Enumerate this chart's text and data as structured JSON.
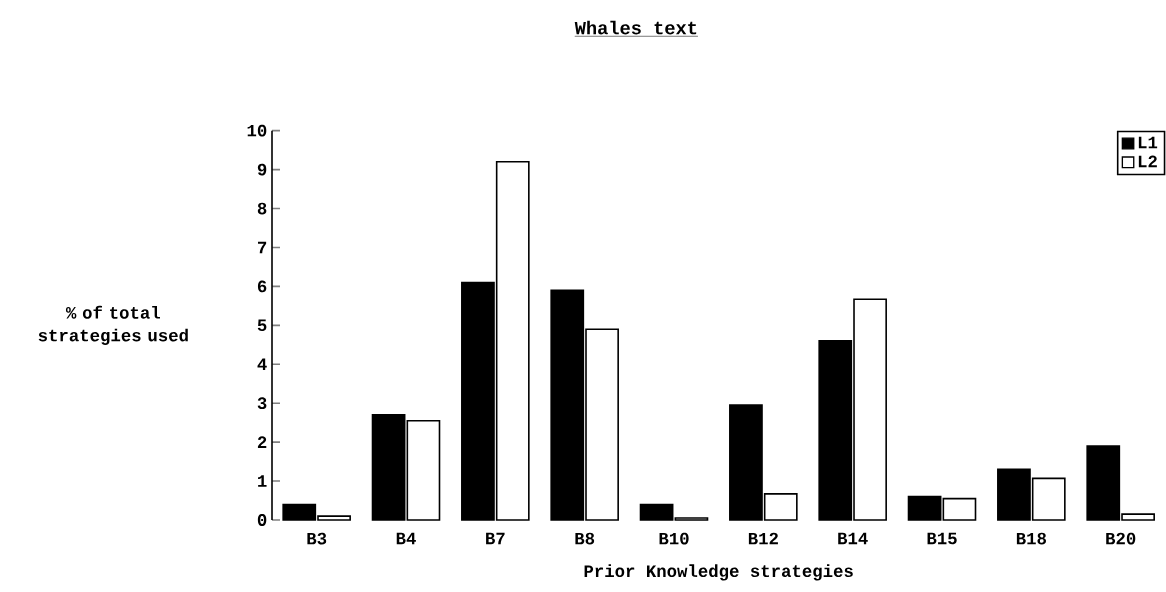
{
  "chart_data": {
    "type": "bar",
    "title": "Whales text",
    "xlabel": "Prior Knowledge strategies",
    "ylabel": "% of total strategies used",
    "categories": [
      "B3",
      "B4",
      "B7",
      "B8",
      "B10",
      "B12",
      "B14",
      "B15",
      "B18",
      "B20"
    ],
    "series": [
      {
        "name": "L1",
        "color": "#000000",
        "values": [
          0.4,
          2.7,
          6.1,
          5.9,
          0.4,
          2.95,
          4.6,
          0.6,
          1.3,
          1.9
        ]
      },
      {
        "name": "L2",
        "color": "#ffffff",
        "values": [
          0.1,
          2.55,
          9.2,
          4.9,
          0.05,
          0.67,
          5.67,
          0.55,
          1.07,
          0.15
        ]
      }
    ],
    "ylim": [
      0,
      10
    ],
    "yticks": [
      0,
      1,
      2,
      3,
      4,
      5,
      6,
      7,
      8,
      9,
      10
    ],
    "legend": "top right",
    "grid": false
  }
}
